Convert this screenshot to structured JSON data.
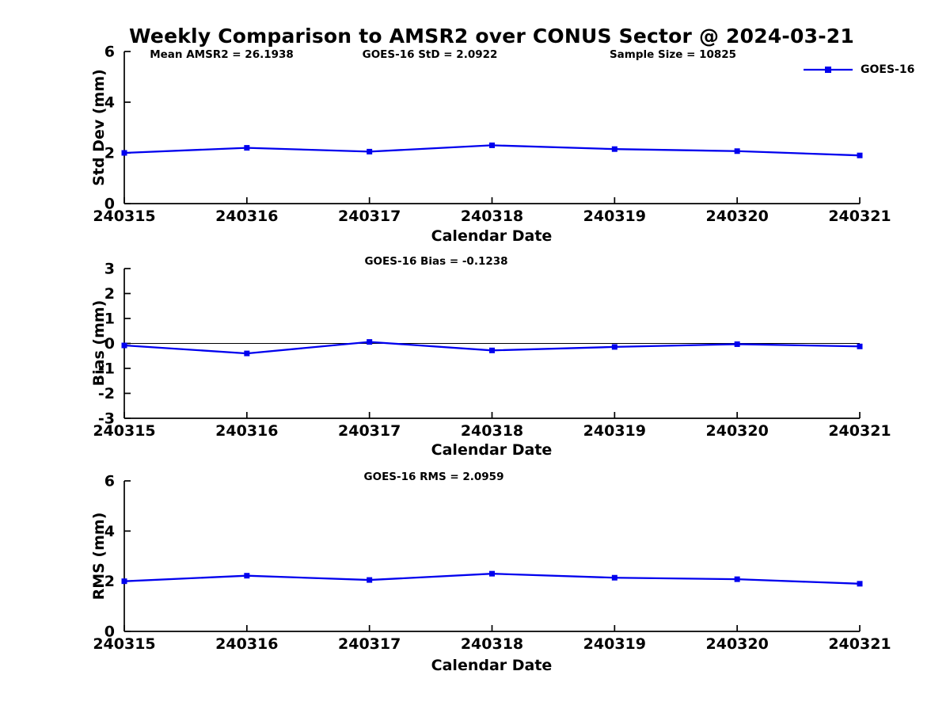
{
  "title": "Weekly Comparison to AMSR2 over CONUS Sector @ 2024-03-21",
  "axis_color": "#000000",
  "chart_data": [
    {
      "type": "line",
      "name": "std-dev-subplot",
      "categories": [
        "240315",
        "240316",
        "240317",
        "240318",
        "240319",
        "240320",
        "240321"
      ],
      "series": [
        {
          "name": "GOES-16",
          "color": "#0000ee",
          "marker": "square",
          "values": [
            2.0,
            2.2,
            2.05,
            2.3,
            2.15,
            2.07,
            1.9
          ]
        }
      ],
      "annotations": [
        "Mean AMSR2 = 26.1938",
        "GOES-16 StD = 2.0922",
        "Sample Size = 10825"
      ],
      "legend": {
        "label": "GOES-16",
        "position": "top-right"
      },
      "xlabel": "Calendar Date",
      "ylabel": "Std Dev (mm)",
      "ylim": [
        0,
        6
      ],
      "yticks": [
        0,
        2,
        4,
        6
      ],
      "grid": false,
      "zero_line": false
    },
    {
      "type": "line",
      "name": "bias-subplot",
      "categories": [
        "240315",
        "240316",
        "240317",
        "240318",
        "240319",
        "240320",
        "240321"
      ],
      "series": [
        {
          "name": "GOES-16",
          "color": "#0000ee",
          "marker": "square",
          "values": [
            -0.08,
            -0.4,
            0.06,
            -0.28,
            -0.14,
            -0.03,
            -0.12
          ]
        }
      ],
      "annotations": [
        "GOES-16 Bias  = -0.1238"
      ],
      "xlabel": "Calendar Date",
      "ylabel": "Bias (mm)",
      "ylim": [
        -3,
        3
      ],
      "yticks": [
        -3,
        -2,
        -1,
        0,
        1,
        2,
        3
      ],
      "grid": false,
      "zero_line": true
    },
    {
      "type": "line",
      "name": "rms-subplot",
      "categories": [
        "240315",
        "240316",
        "240317",
        "240318",
        "240319",
        "240320",
        "240321"
      ],
      "series": [
        {
          "name": "GOES-16",
          "color": "#0000ee",
          "marker": "square",
          "values": [
            2.0,
            2.22,
            2.05,
            2.3,
            2.14,
            2.08,
            1.9
          ]
        }
      ],
      "annotations": [
        "GOES-16 RMS = 2.0959"
      ],
      "xlabel": "Calendar Date",
      "ylabel": "RMS (mm)",
      "ylim": [
        0,
        6
      ],
      "yticks": [
        0,
        2,
        4,
        6
      ],
      "grid": false,
      "zero_line": false
    }
  ]
}
